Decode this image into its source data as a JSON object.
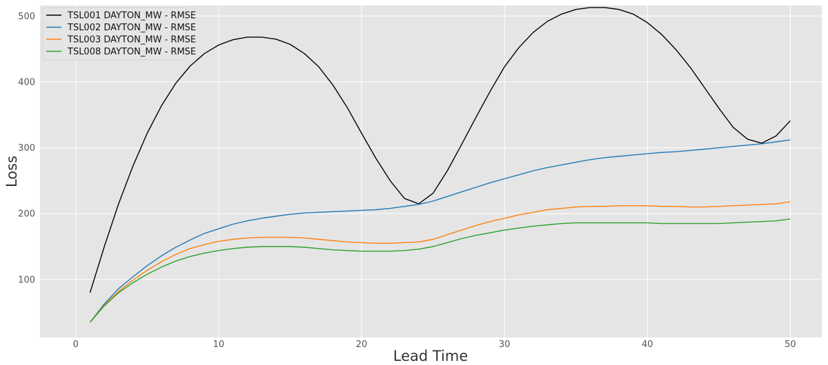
{
  "chart_data": {
    "type": "line",
    "xlabel": "Lead Time",
    "ylabel": "Loss",
    "xlim": [
      -2.5,
      52.2
    ],
    "ylim": [
      12,
      516
    ],
    "xticks": [
      0,
      10,
      20,
      30,
      40,
      50
    ],
    "yticks": [
      100,
      200,
      300,
      400,
      500
    ],
    "grid": true,
    "legend_position": "top-left",
    "x": [
      1,
      2,
      3,
      4,
      5,
      6,
      7,
      8,
      9,
      10,
      11,
      12,
      13,
      14,
      15,
      16,
      17,
      18,
      19,
      20,
      21,
      22,
      23,
      24,
      25,
      26,
      27,
      28,
      29,
      30,
      31,
      32,
      33,
      34,
      35,
      36,
      37,
      38,
      39,
      40,
      41,
      42,
      43,
      44,
      45,
      46,
      47,
      48,
      49,
      50
    ],
    "series": [
      {
        "name": "TSL001 DAYTON_MW - RMSE",
        "color": "#000000",
        "values": [
          80,
          150,
          215,
          272,
          322,
          364,
          398,
          424,
          443,
          456,
          464,
          468,
          468,
          465,
          457,
          443,
          423,
          395,
          361,
          322,
          284,
          250,
          223,
          215,
          231,
          265,
          305,
          346,
          386,
          423,
          452,
          475,
          492,
          503,
          510,
          513,
          513,
          510,
          503,
          490,
          472,
          449,
          422,
          391,
          360,
          331,
          313,
          307,
          318,
          341
        ]
      },
      {
        "name": "TSL002 DAYTON_MW - RMSE",
        "color": "#1f77b4",
        "values": [
          35,
          63,
          86,
          104,
          121,
          136,
          149,
          160,
          170,
          177,
          184,
          189,
          193,
          196,
          199,
          201,
          202,
          203,
          204,
          205,
          206,
          208,
          211,
          214,
          219,
          226,
          233,
          240,
          247,
          253,
          259,
          265,
          270,
          274,
          278,
          282,
          285,
          287,
          289,
          291,
          293,
          294,
          296,
          298,
          300,
          302,
          304,
          306,
          309,
          312
        ]
      },
      {
        "name": "TSL003 DAYTON_MW - RMSE",
        "color": "#ff7f0e",
        "values": [
          35,
          61,
          82,
          99,
          114,
          127,
          138,
          147,
          153,
          158,
          161,
          163,
          164,
          164,
          164,
          163,
          161,
          159,
          157,
          156,
          155,
          155,
          156,
          157,
          161,
          168,
          175,
          182,
          188,
          193,
          198,
          202,
          206,
          208,
          210,
          211,
          211,
          212,
          212,
          212,
          211,
          211,
          210,
          210,
          211,
          212,
          213,
          214,
          215,
          218
        ]
      },
      {
        "name": "TSL008 DAYTON_MW - RMSE",
        "color": "#2ca02c",
        "values": [
          35,
          60,
          80,
          95,
          108,
          119,
          128,
          135,
          140,
          144,
          147,
          149,
          150,
          150,
          150,
          149,
          147,
          145,
          144,
          143,
          143,
          143,
          144,
          146,
          150,
          156,
          162,
          167,
          171,
          175,
          178,
          181,
          183,
          185,
          186,
          186,
          186,
          186,
          186,
          186,
          185,
          185,
          185,
          185,
          185,
          186,
          187,
          188,
          189,
          192
        ]
      }
    ]
  }
}
